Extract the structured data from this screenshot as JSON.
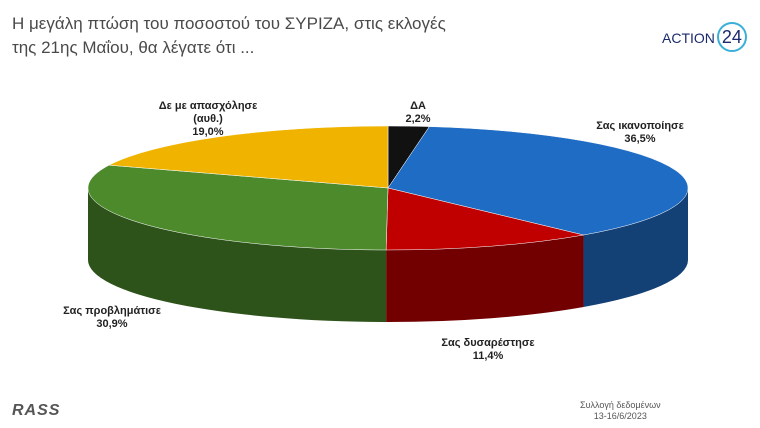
{
  "chart_data": {
    "type": "pie",
    "title": "Η μεγάλη πτώση του ποσοστού του ΣΥΡΙΖΑ, στις εκλογές της 21ης Μαΐου, θα λέγατε ότι ...",
    "categories": [
      "ΔΑ",
      "Σας ικανοποίησε",
      "Σας δυσαρέστησε",
      "Σας προβλημάτισε",
      "Δε με απασχόλησε (αυθ.)"
    ],
    "values": [
      2.2,
      36.5,
      11.4,
      30.9,
      19.0
    ],
    "value_labels": [
      "2,2%",
      "36,5%",
      "11,4%",
      "30,9%",
      "19,0%"
    ],
    "colors": [
      "#111111",
      "#1f6cc4",
      "#c00000",
      "#4d8a2c",
      "#f0b400"
    ],
    "logo": [
      "ACTION",
      "24"
    ],
    "source_logo": "RASS",
    "note": [
      "Συλλογή δεδομένων",
      "13-16/6/2023"
    ]
  }
}
